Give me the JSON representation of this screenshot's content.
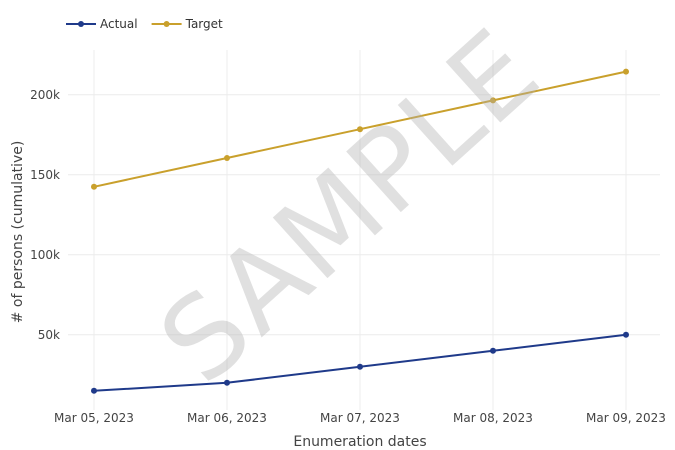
{
  "chart_data": {
    "type": "line",
    "x": [
      "Mar 05, 2023",
      "Mar 06, 2023",
      "Mar 07, 2023",
      "Mar 08, 2023",
      "Mar 09, 2023"
    ],
    "series": [
      {
        "name": "Actual",
        "color": "#1f3a8a",
        "values": [
          15000,
          20000,
          30000,
          40000,
          50000
        ]
      },
      {
        "name": "Target",
        "color": "#c9a02c",
        "values": [
          142500,
          160500,
          178500,
          196500,
          214500
        ]
      }
    ],
    "xlabel": "Enumeration dates",
    "ylabel": "# of persons (cumulative)",
    "yticks": [
      50000,
      100000,
      150000,
      200000
    ],
    "ytick_labels": [
      "50k",
      "100k",
      "150k",
      "200k"
    ],
    "ylim": [
      3000,
      228000
    ],
    "grid": true,
    "legend_position": "top-left"
  },
  "watermark": "SAMPLE"
}
